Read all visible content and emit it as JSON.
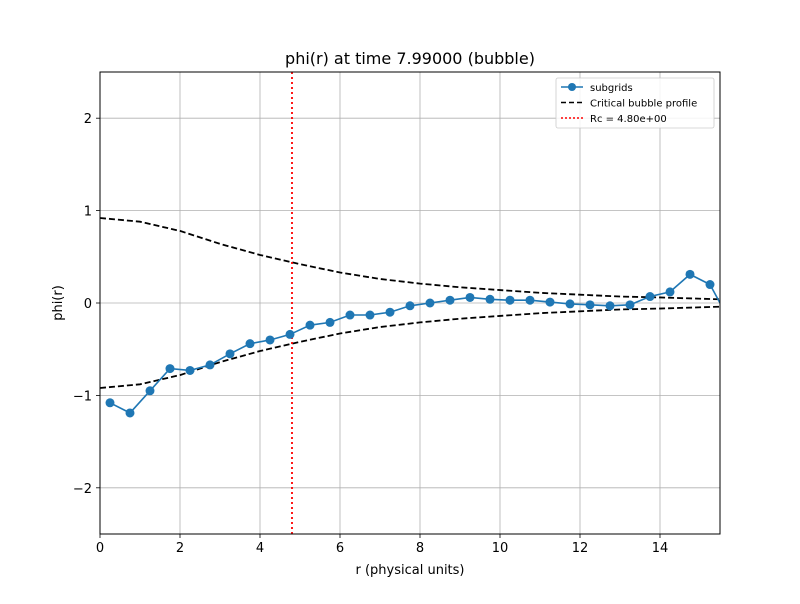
{
  "chart_data": {
    "type": "line",
    "title": "phi(r) at time 7.99000 (bubble)",
    "xlabel": "r (physical units)",
    "ylabel": "phi(r)",
    "xlim": [
      0,
      15.5
    ],
    "ylim": [
      -2.5,
      2.5
    ],
    "grid": true,
    "legend_position": "top-right",
    "x_ticks": [
      0,
      2,
      4,
      6,
      8,
      10,
      12,
      14
    ],
    "x_tick_labels": [
      "0",
      "2",
      "4",
      "6",
      "8",
      "10",
      "12",
      "14"
    ],
    "y_ticks": [
      -2,
      -1,
      0,
      1,
      2
    ],
    "y_tick_labels": [
      "−2",
      "−1",
      "0",
      "1",
      "2"
    ],
    "legend": [
      {
        "label": "subgrids",
        "color": "#1f77b4",
        "style": "solid-marker"
      },
      {
        "label": "Critical bubble profile",
        "color": "#000000",
        "style": "dashed"
      },
      {
        "label": "Rc = 4.80e+00",
        "color": "#ff0000",
        "style": "dotted"
      }
    ],
    "series": [
      {
        "name": "subgrids",
        "color": "#1f77b4",
        "x": [
          0.25,
          0.75,
          1.25,
          1.75,
          2.25,
          2.75,
          3.25,
          3.75,
          4.25,
          4.75,
          5.25,
          5.75,
          6.25,
          6.75,
          7.25,
          7.75,
          8.25,
          8.75,
          9.25,
          9.75,
          10.25,
          10.75,
          11.25,
          11.75,
          12.25,
          12.75,
          13.25,
          13.75,
          14.25,
          14.75,
          15.25,
          15.5
        ],
        "y": [
          -1.08,
          -1.19,
          -0.95,
          -0.71,
          -0.73,
          -0.67,
          -0.55,
          -0.44,
          -0.4,
          -0.34,
          -0.24,
          -0.21,
          -0.13,
          -0.13,
          -0.1,
          -0.03,
          0.0,
          0.03,
          0.06,
          0.04,
          0.03,
          0.03,
          0.01,
          -0.01,
          -0.02,
          -0.03,
          -0.02,
          0.07,
          0.12,
          0.31,
          0.2,
          0.0
        ]
      },
      {
        "name": "Critical bubble profile",
        "color": "#000000",
        "x": [
          0,
          1,
          2,
          3,
          4,
          5,
          6,
          7,
          8,
          9,
          10,
          11,
          12,
          13,
          14,
          15.5
        ],
        "y": [
          0.92,
          0.88,
          0.78,
          0.64,
          0.52,
          0.42,
          0.33,
          0.26,
          0.21,
          0.17,
          0.14,
          0.11,
          0.09,
          0.07,
          0.06,
          0.04
        ]
      },
      {
        "name": "Critical bubble profile (negative branch)",
        "color": "#000000",
        "x": [
          0,
          1,
          2,
          3,
          4,
          5,
          6,
          7,
          8,
          9,
          10,
          11,
          12,
          13,
          14,
          15.5
        ],
        "y": [
          -0.92,
          -0.88,
          -0.78,
          -0.64,
          -0.52,
          -0.42,
          -0.33,
          -0.26,
          -0.21,
          -0.17,
          -0.14,
          -0.11,
          -0.09,
          -0.07,
          -0.06,
          -0.04
        ]
      }
    ],
    "vlines": [
      {
        "name": "Rc = 4.80e+00",
        "x": 4.8,
        "color": "#ff0000"
      }
    ]
  }
}
